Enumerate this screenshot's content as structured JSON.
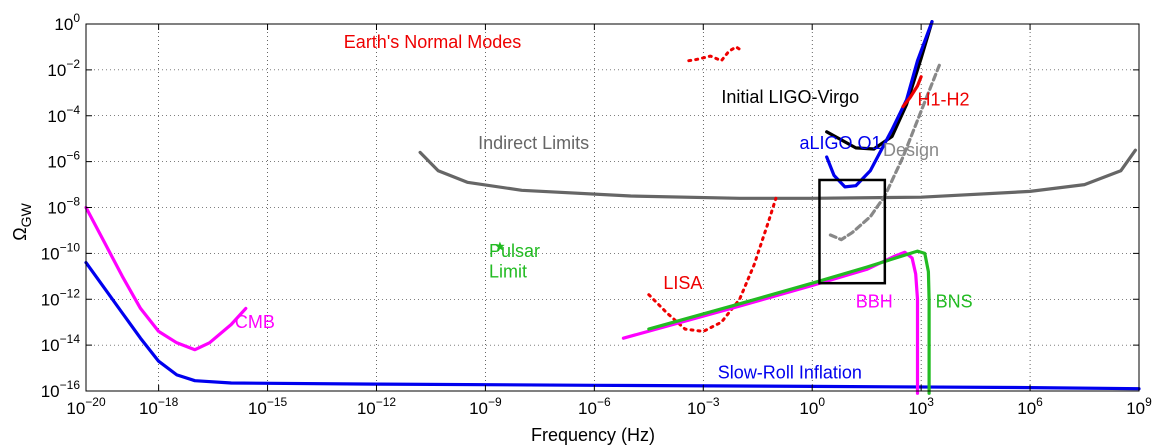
{
  "chart_data": {
    "type": "line",
    "title": "",
    "xlabel": "Frequency (Hz)",
    "ylabel": "Ω",
    "ylabel_sub": "GW",
    "xscale": "log",
    "yscale": "log",
    "xlim_log10": [
      -20,
      9
    ],
    "ylim_log10": [
      -16,
      0
    ],
    "x_ticks": [
      {
        "base": "10",
        "exp": "−20",
        "value_log10": -20
      },
      {
        "base": "10",
        "exp": "−18",
        "value_log10": -18
      },
      {
        "base": "10",
        "exp": "−15",
        "value_log10": -15
      },
      {
        "base": "10",
        "exp": "−12",
        "value_log10": -12
      },
      {
        "base": "10",
        "exp": "−9",
        "value_log10": -9
      },
      {
        "base": "10",
        "exp": "−6",
        "value_log10": -6
      },
      {
        "base": "10",
        "exp": "−3",
        "value_log10": -3
      },
      {
        "base": "10",
        "exp": "0",
        "value_log10": 0
      },
      {
        "base": "10",
        "exp": "3",
        "value_log10": 3
      },
      {
        "base": "10",
        "exp": "6",
        "value_log10": 6
      },
      {
        "base": "10",
        "exp": "9",
        "value_log10": 9
      }
    ],
    "y_ticks": [
      {
        "base": "10",
        "exp": "0",
        "value_log10": 0
      },
      {
        "base": "10",
        "exp": "−2",
        "value_log10": -2
      },
      {
        "base": "10",
        "exp": "−4",
        "value_log10": -4
      },
      {
        "base": "10",
        "exp": "−6",
        "value_log10": -6
      },
      {
        "base": "10",
        "exp": "−8",
        "value_log10": -8
      },
      {
        "base": "10",
        "exp": "−10",
        "value_log10": -10
      },
      {
        "base": "10",
        "exp": "−12",
        "value_log10": -12
      },
      {
        "base": "10",
        "exp": "−14",
        "value_log10": -14
      },
      {
        "base": "10",
        "exp": "−16",
        "value_log10": -16
      }
    ],
    "grid": true,
    "series": [
      {
        "id": "slow-roll",
        "color": "#0000ee",
        "dash": "solid",
        "points_log10": [
          [
            -20,
            -10.4
          ],
          [
            -19.5,
            -11.5
          ],
          [
            -19,
            -12.6
          ],
          [
            -18.5,
            -13.7
          ],
          [
            -18,
            -14.7
          ],
          [
            -17.5,
            -15.3
          ],
          [
            -17,
            -15.55
          ],
          [
            -16,
            -15.65
          ],
          [
            -12,
            -15.7
          ],
          [
            -6,
            -15.75
          ],
          [
            0,
            -15.8
          ],
          [
            6,
            -15.85
          ],
          [
            9,
            -15.9
          ]
        ]
      },
      {
        "id": "cmb",
        "color": "#ff00ff",
        "dash": "solid",
        "points_log10": [
          [
            -20,
            -8.0
          ],
          [
            -19.5,
            -9.5
          ],
          [
            -19,
            -11.0
          ],
          [
            -18.5,
            -12.4
          ],
          [
            -18,
            -13.4
          ],
          [
            -17.5,
            -13.9
          ],
          [
            -17,
            -14.2
          ],
          [
            -16.6,
            -13.9
          ],
          [
            -16,
            -13.1
          ],
          [
            -15.6,
            -12.4
          ]
        ]
      },
      {
        "id": "indirect-limits",
        "color": "#666666",
        "dash": "solid",
        "points_log10": [
          [
            -10.8,
            -5.6
          ],
          [
            -10.3,
            -6.4
          ],
          [
            -9.5,
            -6.9
          ],
          [
            -8,
            -7.25
          ],
          [
            -5,
            -7.5
          ],
          [
            -2,
            -7.6
          ],
          [
            0,
            -7.6
          ],
          [
            3,
            -7.55
          ],
          [
            6,
            -7.3
          ],
          [
            7.5,
            -7.0
          ],
          [
            8.5,
            -6.4
          ],
          [
            8.9,
            -5.5
          ]
        ]
      },
      {
        "id": "lisa",
        "color": "#ee0000",
        "dash": "dotted",
        "points_log10": [
          [
            -4.5,
            -11.8
          ],
          [
            -4,
            -12.6
          ],
          [
            -3.5,
            -13.3
          ],
          [
            -3,
            -13.4
          ],
          [
            -2.5,
            -13.0
          ],
          [
            -2,
            -12.0
          ],
          [
            -1.6,
            -10.5
          ],
          [
            -1.2,
            -8.6
          ],
          [
            -1.0,
            -7.6
          ]
        ]
      },
      {
        "id": "earth-modes",
        "color": "#ee0000",
        "dash": "dotted",
        "points_log10": [
          [
            -3.4,
            -1.6
          ],
          [
            -3.2,
            -1.55
          ],
          [
            -2.8,
            -1.4
          ],
          [
            -2.5,
            -1.6
          ],
          [
            -2.3,
            -1.2
          ],
          [
            -2.1,
            -1.0
          ],
          [
            -1.9,
            -1.2
          ]
        ]
      },
      {
        "id": "initial-ligo",
        "color": "#000000",
        "dash": "solid",
        "points_log10": [
          [
            0.4,
            -4.7
          ],
          [
            1.2,
            -5.4
          ],
          [
            1.7,
            -5.45
          ],
          [
            2.2,
            -4.9
          ],
          [
            2.6,
            -3.5
          ],
          [
            3.0,
            -1.5
          ],
          [
            3.3,
            0.1
          ]
        ]
      },
      {
        "id": "aligo-o1",
        "color": "#0000ee",
        "dash": "solid",
        "points_log10": [
          [
            0.4,
            -5.8
          ],
          [
            0.6,
            -6.6
          ],
          [
            0.9,
            -7.1
          ],
          [
            1.2,
            -7.05
          ],
          [
            1.6,
            -6.4
          ],
          [
            2.2,
            -4.6
          ],
          [
            2.6,
            -3.3
          ],
          [
            2.9,
            -1.6
          ],
          [
            3.3,
            0.1
          ]
        ]
      },
      {
        "id": "h1-h2",
        "color": "#ee0000",
        "dash": "solid",
        "points_log10": [
          [
            2.5,
            -3.6
          ],
          [
            2.7,
            -3.2
          ],
          [
            2.9,
            -2.7
          ],
          [
            3.0,
            -2.3
          ]
        ]
      },
      {
        "id": "design",
        "color": "#888888",
        "dash": "dashed",
        "points_log10": [
          [
            0.5,
            -9.2
          ],
          [
            0.8,
            -9.4
          ],
          [
            1.1,
            -9.1
          ],
          [
            1.6,
            -8.4
          ],
          [
            2.0,
            -7.5
          ],
          [
            2.5,
            -5.8
          ],
          [
            3.0,
            -3.8
          ],
          [
            3.5,
            -1.8
          ]
        ]
      },
      {
        "id": "bbh",
        "color": "#ff00ff",
        "dash": "solid",
        "points_log10": [
          [
            -5.2,
            -13.7
          ],
          [
            -2,
            -12.3
          ],
          [
            0,
            -11.4
          ],
          [
            1.5,
            -10.7
          ],
          [
            2.3,
            -10.1
          ],
          [
            2.55,
            -9.95
          ],
          [
            2.75,
            -10.2
          ],
          [
            2.85,
            -10.9
          ],
          [
            2.9,
            -12
          ],
          [
            2.9,
            -16.1
          ]
        ]
      },
      {
        "id": "bns",
        "color": "#22bb22",
        "dash": "solid",
        "points_log10": [
          [
            -4.5,
            -13.3
          ],
          [
            -2,
            -12.2
          ],
          [
            0,
            -11.3
          ],
          [
            1.5,
            -10.6
          ],
          [
            2.5,
            -10.1
          ],
          [
            2.9,
            -9.9
          ],
          [
            3.1,
            -10.0
          ],
          [
            3.2,
            -10.8
          ],
          [
            3.22,
            -12
          ],
          [
            3.22,
            -16.1
          ]
        ]
      }
    ],
    "pulsar_star": {
      "x_log10": -8.6,
      "y_log10": -9.7,
      "color": "#22bb22"
    },
    "box": {
      "x_log10": [
        0.2,
        2.0
      ],
      "y_log10": [
        -11.3,
        -6.8
      ],
      "color": "#000000"
    },
    "annotations": [
      {
        "id": "earth-normal-modes",
        "text": "Earth's Normal Modes",
        "color": "#ee0000",
        "x_log10": -12.9,
        "y_log10": -1.05
      },
      {
        "id": "initial-ligo-virgo",
        "text": "Initial LIGO-Virgo",
        "color": "#000000",
        "x_log10": -2.5,
        "y_log10": -3.45
      },
      {
        "id": "h1-h2",
        "text": "H1-H2",
        "color": "#ee0000",
        "x_log10": 2.9,
        "y_log10": -3.55
      },
      {
        "id": "indirect-limits",
        "text": "Indirect Limits",
        "color": "#666666",
        "x_log10": -9.2,
        "y_log10": -5.45
      },
      {
        "id": "aligo-o1",
        "text": "aLIGO O1",
        "color": "#0000ee",
        "x_log10": -0.35,
        "y_log10": -5.45
      },
      {
        "id": "design",
        "text": "Design",
        "color": "#888888",
        "x_log10": 1.95,
        "y_log10": -5.75
      },
      {
        "id": "pulsar",
        "text": "Pulsar",
        "color": "#22bb22",
        "x_log10": -8.9,
        "y_log10": -10.15
      },
      {
        "id": "limit",
        "text": "Limit",
        "color": "#22bb22",
        "x_log10": -8.9,
        "y_log10": -11.05
      },
      {
        "id": "lisa",
        "text": "LISA",
        "color": "#ee0000",
        "x_log10": -4.1,
        "y_log10": -11.55
      },
      {
        "id": "bbh",
        "text": "BBH",
        "color": "#ff00ff",
        "x_log10": 1.2,
        "y_log10": -12.35
      },
      {
        "id": "bns",
        "text": "BNS",
        "color": "#22bb22",
        "x_log10": 3.4,
        "y_log10": -12.35
      },
      {
        "id": "cmb",
        "text": "CMB",
        "color": "#ff00ff",
        "x_log10": -15.9,
        "y_log10": -13.25
      },
      {
        "id": "slow-roll-inflation",
        "text": "Slow-Roll Inflation",
        "color": "#0000ee",
        "x_log10": -2.6,
        "y_log10": -15.45
      }
    ]
  }
}
